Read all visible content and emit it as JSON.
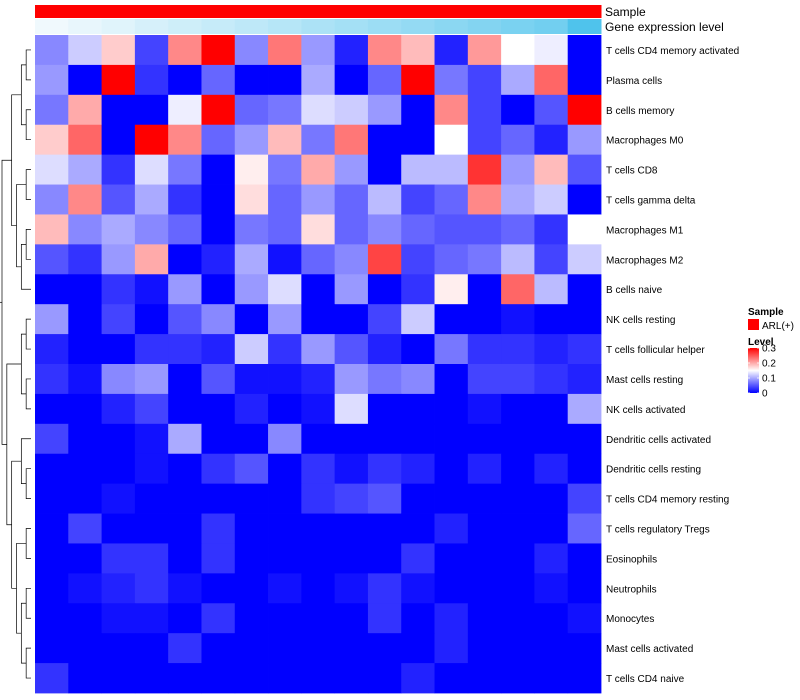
{
  "chart_data": {
    "type": "heatmap",
    "annotations": [
      {
        "name": "Sample",
        "label": "Sample"
      },
      {
        "name": "Gene expression level",
        "label": "Gene expression level"
      }
    ],
    "rows": [
      "T cells CD4 memory activated",
      "Plasma cells",
      "B cells memory",
      "Macrophages M0",
      "T cells CD8",
      "T cells gamma delta",
      "Macrophages M1",
      "Macrophages M2",
      "B cells naive",
      "NK cells resting",
      "T cells follicular helper",
      "Mast cells resting",
      "NK cells activated",
      "Dendritic cells activated",
      "Dendritic cells resting",
      "T cells CD4 memory resting",
      "T cells regulatory  Tregs",
      "Eosinophils",
      "Neutrophils",
      "Monocytes",
      "Mast cells activated",
      "T cells CD4 naive"
    ],
    "values": [
      [
        0.08,
        0.12,
        0.18,
        0.04,
        0.22,
        0.3,
        0.08,
        0.23,
        0.09,
        0.02,
        0.22,
        0.19,
        0.02,
        0.21,
        0.15,
        0.14,
        0.0
      ],
      [
        0.09,
        0.0,
        0.3,
        0.03,
        0.0,
        0.06,
        0.0,
        0.0,
        0.1,
        0.0,
        0.06,
        0.3,
        0.07,
        0.04,
        0.1,
        0.24,
        0.0
      ],
      [
        0.07,
        0.2,
        0.0,
        0.0,
        0.14,
        0.3,
        0.06,
        0.07,
        0.13,
        0.12,
        0.09,
        0.0,
        0.22,
        0.04,
        0.0,
        0.05,
        0.3
      ],
      [
        0.18,
        0.24,
        0.0,
        0.3,
        0.22,
        0.06,
        0.09,
        0.19,
        0.07,
        0.23,
        0.0,
        0.0,
        0.15,
        0.04,
        0.06,
        0.02,
        0.09
      ],
      [
        0.13,
        0.1,
        0.03,
        0.13,
        0.07,
        0.0,
        0.16,
        0.07,
        0.2,
        0.09,
        0.0,
        0.11,
        0.11,
        0.27,
        0.09,
        0.19,
        0.05
      ],
      [
        0.08,
        0.22,
        0.05,
        0.1,
        0.03,
        0.0,
        0.17,
        0.06,
        0.09,
        0.06,
        0.11,
        0.04,
        0.06,
        0.22,
        0.1,
        0.12,
        0.0
      ],
      [
        0.19,
        0.08,
        0.1,
        0.08,
        0.06,
        0.0,
        0.07,
        0.06,
        0.17,
        0.06,
        0.08,
        0.06,
        0.05,
        0.05,
        0.06,
        0.03,
        0.15
      ],
      [
        0.05,
        0.03,
        0.09,
        0.2,
        0.0,
        0.02,
        0.1,
        0.01,
        0.06,
        0.08,
        0.26,
        0.04,
        0.06,
        0.07,
        0.11,
        0.04,
        0.12
      ],
      [
        0.0,
        0.0,
        0.03,
        0.01,
        0.09,
        0.0,
        0.09,
        0.13,
        0.0,
        0.09,
        0.0,
        0.03,
        0.16,
        0.0,
        0.24,
        0.11,
        0.0
      ],
      [
        0.09,
        0.0,
        0.04,
        0.0,
        0.05,
        0.08,
        0.0,
        0.09,
        0.0,
        0.0,
        0.04,
        0.12,
        0.0,
        0.0,
        0.01,
        0.0,
        0.0
      ],
      [
        0.02,
        0.0,
        0.0,
        0.03,
        0.03,
        0.02,
        0.12,
        0.03,
        0.09,
        0.05,
        0.02,
        0.0,
        0.07,
        0.03,
        0.03,
        0.02,
        0.03
      ],
      [
        0.03,
        0.01,
        0.08,
        0.09,
        0.0,
        0.05,
        0.01,
        0.01,
        0.02,
        0.09,
        0.07,
        0.08,
        0.0,
        0.04,
        0.04,
        0.03,
        0.02
      ],
      [
        0.0,
        0.0,
        0.02,
        0.04,
        0.0,
        0.0,
        0.02,
        0.0,
        0.01,
        0.13,
        0.0,
        0.0,
        0.0,
        0.01,
        0.0,
        0.0,
        0.1
      ],
      [
        0.04,
        0.0,
        0.0,
        0.01,
        0.1,
        0.0,
        0.0,
        0.08,
        0.0,
        0.0,
        0.0,
        0.0,
        0.0,
        0.0,
        0.0,
        0.0,
        0.0
      ],
      [
        0.0,
        0.0,
        0.0,
        0.01,
        0.0,
        0.03,
        0.05,
        0.0,
        0.03,
        0.01,
        0.03,
        0.02,
        0.0,
        0.02,
        0.0,
        0.02,
        0.0
      ],
      [
        0.0,
        0.0,
        0.01,
        0.0,
        0.0,
        0.0,
        0.0,
        0.0,
        0.03,
        0.04,
        0.05,
        0.0,
        0.0,
        0.0,
        0.0,
        0.0,
        0.04
      ],
      [
        0.0,
        0.04,
        0.0,
        0.0,
        0.0,
        0.03,
        0.0,
        0.0,
        0.0,
        0.0,
        0.0,
        0.0,
        0.02,
        0.0,
        0.0,
        0.0,
        0.06
      ],
      [
        0.0,
        0.0,
        0.03,
        0.03,
        0.0,
        0.03,
        0.0,
        0.0,
        0.0,
        0.0,
        0.0,
        0.03,
        0.0,
        0.0,
        0.0,
        0.02,
        0.0
      ],
      [
        0.0,
        0.01,
        0.02,
        0.03,
        0.01,
        0.0,
        0.0,
        0.01,
        0.0,
        0.01,
        0.03,
        0.01,
        0.0,
        0.0,
        0.0,
        0.01,
        0.0
      ],
      [
        0.0,
        0.0,
        0.01,
        0.01,
        0.0,
        0.03,
        0.0,
        0.0,
        0.0,
        0.0,
        0.03,
        0.0,
        0.02,
        0.0,
        0.0,
        0.0,
        0.01
      ],
      [
        0.0,
        0.0,
        0.0,
        0.0,
        0.03,
        0.0,
        0.0,
        0.0,
        0.0,
        0.0,
        0.0,
        0.0,
        0.02,
        0.0,
        0.0,
        0.0,
        0.0
      ],
      [
        0.03,
        0.0,
        0.0,
        0.0,
        0.0,
        0.0,
        0.0,
        0.0,
        0.0,
        0.0,
        0.0,
        0.02,
        0.0,
        0.0,
        0.0,
        0.0,
        0.0
      ]
    ],
    "sample_group": "ARL(+)",
    "gene_expression_levels": [
      0.0,
      0.05,
      0.1,
      0.16,
      0.21,
      0.26,
      0.31,
      0.36,
      0.42,
      0.47,
      0.52,
      0.57,
      0.63,
      0.68,
      0.73,
      0.78,
      1.0
    ],
    "legend": {
      "sample_title": "Sample",
      "sample_entry": "ARL(+)",
      "level_title": "Level",
      "level_ticks": [
        0,
        0.1,
        0.2,
        0.3
      ],
      "level_tick_labels": [
        "0",
        "0.1",
        "0.2",
        "0.3"
      ],
      "range": [
        0,
        0.3
      ],
      "placement": "right"
    },
    "colors": {
      "low": "#0000ff",
      "mid": "#ffffff",
      "high": "#ff0000",
      "sample": "#ff0000",
      "gene_low": "#f0f9fd",
      "gene_high": "#4fc3ec"
    },
    "dendrogram": "row clustering (left)"
  }
}
